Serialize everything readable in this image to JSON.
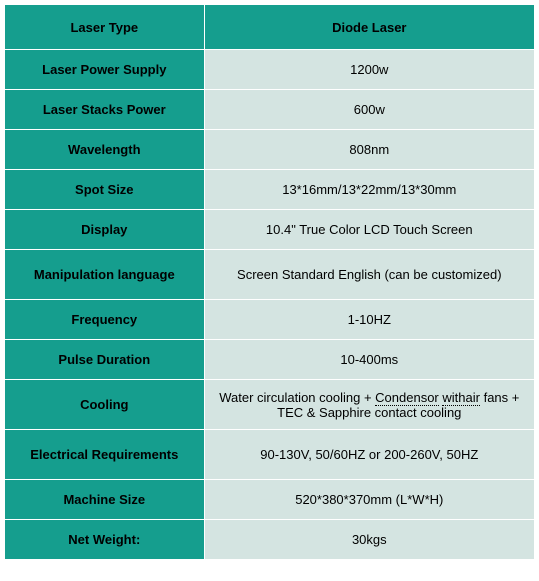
{
  "table": {
    "colors": {
      "label_bg": "#159e8e",
      "value_bg": "#d4e4e1",
      "header_value_bg": "#159e8e",
      "border": "#ffffff",
      "text": "#000000"
    },
    "header": {
      "label": "Laser Type",
      "value": "Diode Laser"
    },
    "rows": [
      {
        "label": "Laser Power Supply",
        "value": "1200w",
        "height": "short"
      },
      {
        "label": "Laser Stacks Power",
        "value": "600w",
        "height": "short"
      },
      {
        "label": "Wavelength",
        "value": "808nm",
        "height": "short"
      },
      {
        "label": "Spot Size",
        "value": "13*16mm/13*22mm/13*30mm",
        "height": "short"
      },
      {
        "label": "Display",
        "value": "10.4\" True Color LCD Touch Screen",
        "height": "short"
      },
      {
        "label": "Manipulation language",
        "value": "Screen Standard English (can be customized)",
        "height": "tall"
      },
      {
        "label": "Frequency",
        "value": "1-10HZ",
        "height": "short"
      },
      {
        "label": "Pulse Duration",
        "value": "10-400ms",
        "height": "short"
      },
      {
        "label": "Cooling",
        "value": "Water circulation cooling + Condensor withair fans + TEC & Sapphire contact cooling",
        "height": "tall",
        "dotted_words": [
          "Condensor",
          "withair"
        ]
      },
      {
        "label": "Electrical Requirements",
        "value": "90-130V, 50/60HZ or 200-260V, 50HZ",
        "height": "tall"
      },
      {
        "label": "Machine Size",
        "value": "520*380*370mm (L*W*H)",
        "height": "short"
      },
      {
        "label": "Net Weight:",
        "value": "30kgs",
        "height": "short"
      }
    ],
    "font_size": 13,
    "label_width": 200,
    "value_width": 331
  }
}
